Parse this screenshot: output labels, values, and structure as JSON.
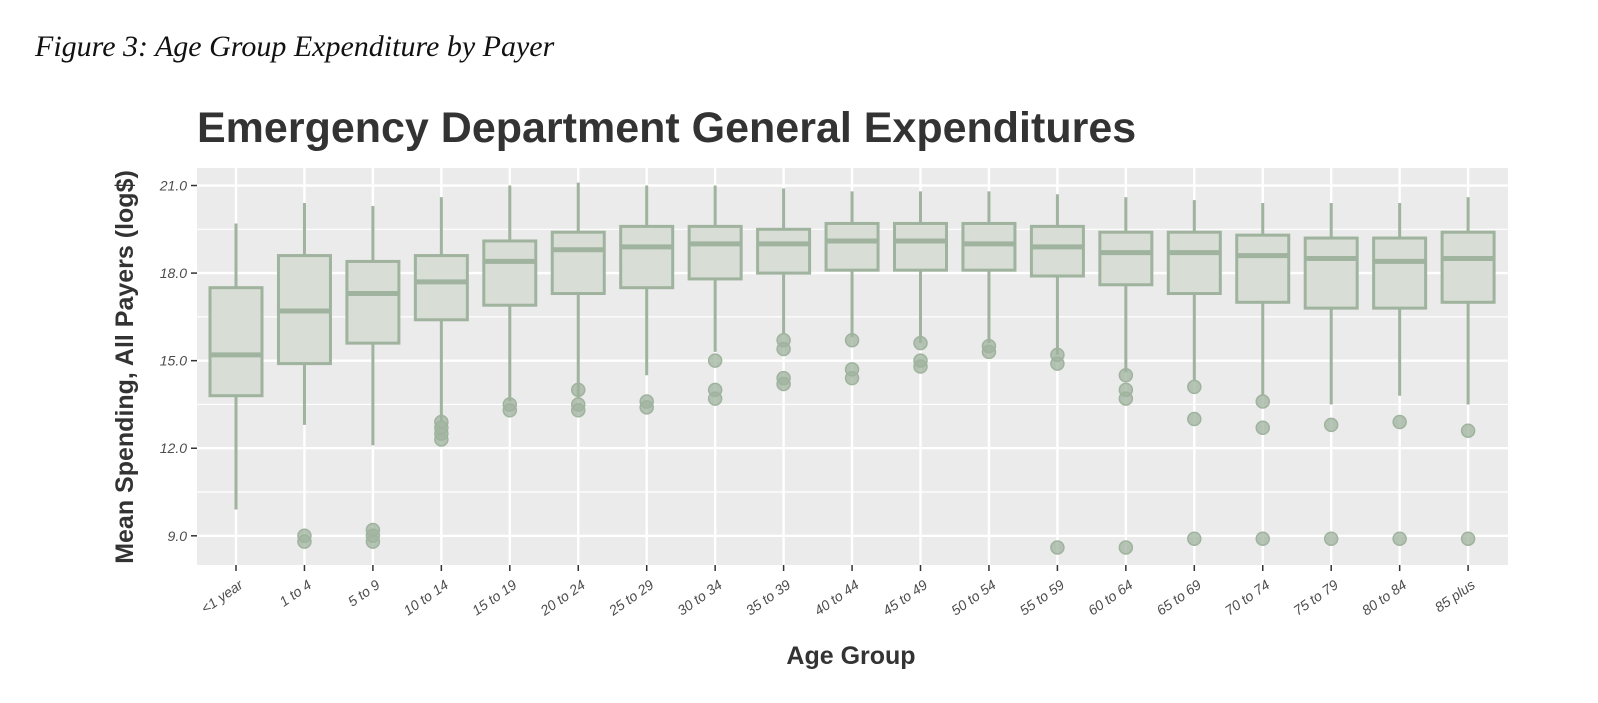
{
  "caption": "Figure 3: Age Group Expenditure by Payer",
  "colors": {
    "panel": "#ebebeb",
    "grid": "#ffffff",
    "box_fill": "#d8ded6",
    "box_stroke": "#9fb39e",
    "text": "#333333"
  },
  "chart_data": {
    "type": "box",
    "title": "Emergency Department General Expenditures",
    "xlabel": "Age Group",
    "ylabel": "Mean Spending, All Payers (log$)",
    "ylim": [
      8.0,
      21.6
    ],
    "yticks": [
      "9.0",
      "12.0",
      "15.0",
      "18.0",
      "21.0"
    ],
    "ytick_values": [
      9,
      12,
      15,
      18,
      21
    ],
    "grid": true,
    "categories": [
      "<1 year",
      "1 to 4",
      "5 to 9",
      "10 to 14",
      "15 to 19",
      "20 to 24",
      "25 to 29",
      "30 to 34",
      "35 to 39",
      "40 to 44",
      "45 to 49",
      "50 to 54",
      "55 to 59",
      "60 to 64",
      "65 to 69",
      "70 to 74",
      "75 to 79",
      "80 to 84",
      "85 plus"
    ],
    "boxes": [
      {
        "whisker_low": 9.9,
        "q1": 13.8,
        "median": 15.2,
        "q3": 17.5,
        "whisker_high": 19.7,
        "outliers": []
      },
      {
        "whisker_low": 12.8,
        "q1": 14.9,
        "median": 16.7,
        "q3": 18.6,
        "whisker_high": 20.4,
        "outliers": [
          8.8,
          9.0
        ]
      },
      {
        "whisker_low": 12.1,
        "q1": 15.6,
        "median": 17.3,
        "q3": 18.4,
        "whisker_high": 20.3,
        "outliers": [
          8.8,
          9.0,
          9.2
        ]
      },
      {
        "whisker_low": 12.9,
        "q1": 16.4,
        "median": 17.7,
        "q3": 18.6,
        "whisker_high": 20.6,
        "outliers": [
          12.3,
          12.5,
          12.7,
          12.9
        ]
      },
      {
        "whisker_low": 13.6,
        "q1": 16.9,
        "median": 18.4,
        "q3": 19.1,
        "whisker_high": 21.0,
        "outliers": [
          13.3,
          13.5
        ]
      },
      {
        "whisker_low": 13.7,
        "q1": 17.3,
        "median": 18.8,
        "q3": 19.4,
        "whisker_high": 21.1,
        "outliers": [
          13.3,
          13.5,
          14.0
        ]
      },
      {
        "whisker_low": 14.5,
        "q1": 17.5,
        "median": 18.9,
        "q3": 19.6,
        "whisker_high": 21.0,
        "outliers": [
          13.4,
          13.6
        ]
      },
      {
        "whisker_low": 15.3,
        "q1": 17.8,
        "median": 19.0,
        "q3": 19.6,
        "whisker_high": 21.0,
        "outliers": [
          13.7,
          14.0,
          15.0
        ]
      },
      {
        "whisker_low": 15.9,
        "q1": 18.0,
        "median": 19.0,
        "q3": 19.5,
        "whisker_high": 20.9,
        "outliers": [
          14.2,
          14.4,
          15.4,
          15.7
        ]
      },
      {
        "whisker_low": 15.8,
        "q1": 18.1,
        "median": 19.1,
        "q3": 19.7,
        "whisker_high": 20.8,
        "outliers": [
          14.4,
          14.7,
          15.7
        ]
      },
      {
        "whisker_low": 15.6,
        "q1": 18.1,
        "median": 19.1,
        "q3": 19.7,
        "whisker_high": 20.8,
        "outliers": [
          14.8,
          15.0,
          15.6
        ]
      },
      {
        "whisker_low": 15.6,
        "q1": 18.1,
        "median": 19.0,
        "q3": 19.7,
        "whisker_high": 20.8,
        "outliers": [
          15.3,
          15.5
        ]
      },
      {
        "whisker_low": 15.2,
        "q1": 17.9,
        "median": 18.9,
        "q3": 19.6,
        "whisker_high": 20.7,
        "outliers": [
          8.6,
          14.9,
          15.2
        ]
      },
      {
        "whisker_low": 14.6,
        "q1": 17.6,
        "median": 18.7,
        "q3": 19.4,
        "whisker_high": 20.6,
        "outliers": [
          8.6,
          13.7,
          14.0,
          14.5
        ]
      },
      {
        "whisker_low": 14.3,
        "q1": 17.3,
        "median": 18.7,
        "q3": 19.4,
        "whisker_high": 20.5,
        "outliers": [
          8.9,
          13.0,
          14.1
        ]
      },
      {
        "whisker_low": 13.8,
        "q1": 17.0,
        "median": 18.6,
        "q3": 19.3,
        "whisker_high": 20.4,
        "outliers": [
          8.9,
          12.7,
          13.6
        ]
      },
      {
        "whisker_low": 13.5,
        "q1": 16.8,
        "median": 18.5,
        "q3": 19.2,
        "whisker_high": 20.4,
        "outliers": [
          8.9,
          12.8
        ]
      },
      {
        "whisker_low": 13.8,
        "q1": 16.8,
        "median": 18.4,
        "q3": 19.2,
        "whisker_high": 20.4,
        "outliers": [
          8.9,
          12.9
        ]
      },
      {
        "whisker_low": 13.5,
        "q1": 17.0,
        "median": 18.5,
        "q3": 19.4,
        "whisker_high": 20.6,
        "outliers": [
          8.9,
          12.6
        ]
      }
    ]
  }
}
